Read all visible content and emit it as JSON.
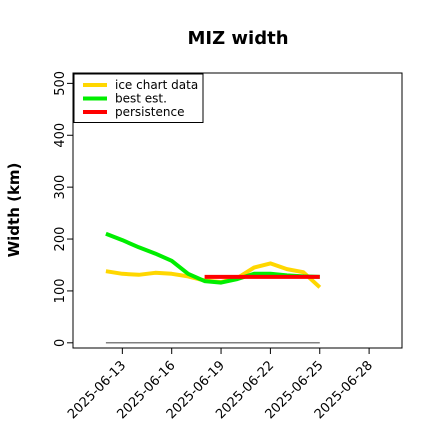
{
  "chart_data": {
    "type": "line",
    "title": "MIZ width",
    "xlabel": "",
    "ylabel": "Width (km)",
    "xlim": [
      "2025-06-10",
      "2025-06-30"
    ],
    "ylim": [
      -10,
      520
    ],
    "yticks": [
      0,
      100,
      200,
      300,
      400,
      500
    ],
    "xticks": [
      "2025-06-13",
      "2025-06-16",
      "2025-06-19",
      "2025-06-22",
      "2025-06-25",
      "2025-06-28"
    ],
    "legend_position": "top-left",
    "series": [
      {
        "name": "ice chart data",
        "color": "#FFD700",
        "x": [
          "2025-06-12",
          "2025-06-13",
          "2025-06-14",
          "2025-06-15",
          "2025-06-16",
          "2025-06-17",
          "2025-06-18",
          "2025-06-19",
          "2025-06-20",
          "2025-06-21",
          "2025-06-22",
          "2025-06-23",
          "2025-06-24",
          "2025-06-25"
        ],
        "y": [
          138,
          133,
          131,
          135,
          133,
          128,
          120,
          117,
          125,
          145,
          153,
          142,
          136,
          107
        ]
      },
      {
        "name": "best est.",
        "color": "#00EE00",
        "x": [
          "2025-06-12",
          "2025-06-13",
          "2025-06-14",
          "2025-06-15",
          "2025-06-16",
          "2025-06-17",
          "2025-06-18",
          "2025-06-19",
          "2025-06-20",
          "2025-06-21",
          "2025-06-22",
          "2025-06-23",
          "2025-06-24",
          "2025-06-25"
        ],
        "y": [
          210,
          198,
          184,
          172,
          158,
          133,
          119,
          116,
          123,
          133,
          133,
          130,
          128,
          127
        ]
      },
      {
        "name": "persistence",
        "color": "#FF0000",
        "x": [
          "2025-06-18",
          "2025-06-25"
        ],
        "y": [
          127,
          127
        ]
      },
      {
        "name": "",
        "color": "#808080",
        "x": [
          "2025-06-12",
          "2025-06-25"
        ],
        "y": [
          0,
          0
        ]
      }
    ]
  }
}
